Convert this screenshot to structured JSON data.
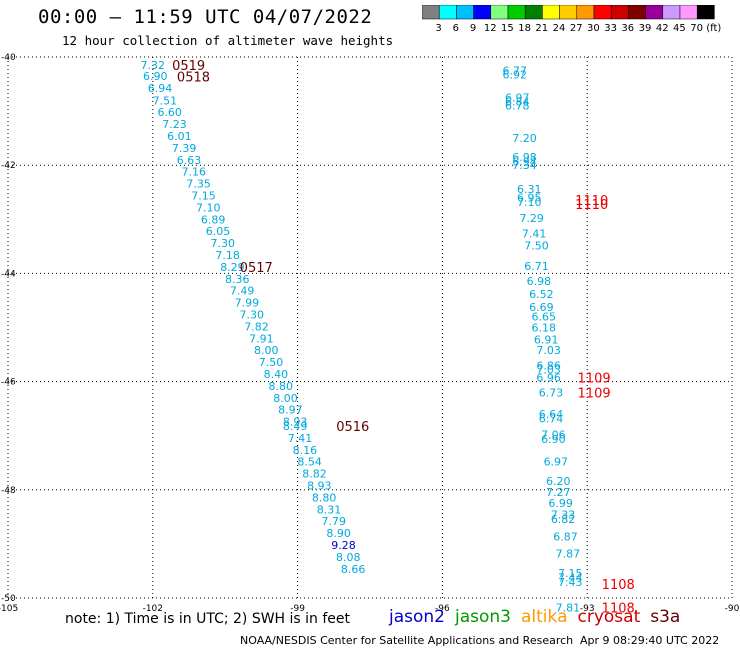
{
  "header": {
    "title": "00:00 – 11:59 UTC 04/07/2022",
    "subtitle": "12 hour collection of altimeter wave heights"
  },
  "colorbar": {
    "colors": [
      "#808080",
      "#00ffff",
      "#00bfff",
      "#0000ff",
      "#80ff80",
      "#00cc00",
      "#008000",
      "#ffff00",
      "#ffcc00",
      "#ff9900",
      "#ff0000",
      "#cc0000",
      "#800000",
      "#990099",
      "#cc99ff",
      "#ff99ff",
      "#000000"
    ],
    "labels": [
      "3",
      "6",
      "9",
      "12",
      "15",
      "18",
      "21",
      "24",
      "27",
      "30",
      "33",
      "36",
      "39",
      "42",
      "45",
      "70",
      "(ft)"
    ]
  },
  "note": "note:  1) Time is in UTC; 2) SWH is in feet",
  "legend": [
    {
      "name": "jason2",
      "color": "#0000cc"
    },
    {
      "name": "jason3",
      "color": "#009900"
    },
    {
      "name": "altika",
      "color": "#ff9900"
    },
    {
      "name": "cryosat",
      "color": "#cc0000"
    },
    {
      "name": "s3a",
      "color": "#660000"
    }
  ],
  "footer": {
    "credit": "NOAA/NESDIS Center for Satellite Applications and Research",
    "timestamp": "Apr  9 08:29:40 UTC 2022"
  },
  "chart_data": {
    "type": "scatter",
    "xlim": [
      -105,
      -90
    ],
    "ylim": [
      -50,
      -40
    ],
    "xticks": [
      -105,
      -102,
      -99,
      -96,
      -93,
      -90
    ],
    "xtick_labels": [
      "-105",
      "-102",
      "-99",
      "-96",
      "-93",
      "-90"
    ],
    "yticks": [
      -40,
      -42,
      -44,
      -46,
      -48,
      -50
    ],
    "ytick_labels": [
      "-40",
      "-42",
      "-44",
      "-46",
      "-48",
      "-50"
    ],
    "grid": true,
    "points": [
      {
        "x": -102.0,
        "y": -40.15,
        "t": "7.32",
        "c": "#00aadd"
      },
      {
        "x": -101.95,
        "y": -40.35,
        "t": "6.90",
        "c": "#00aadd"
      },
      {
        "x": -101.85,
        "y": -40.57,
        "t": "6.94",
        "c": "#00aadd"
      },
      {
        "x": -101.75,
        "y": -40.8,
        "t": "7.51",
        "c": "#00aadd"
      },
      {
        "x": -101.65,
        "y": -41.02,
        "t": "6.60",
        "c": "#00aadd"
      },
      {
        "x": -101.55,
        "y": -41.24,
        "t": "7.23",
        "c": "#00aadd"
      },
      {
        "x": -101.45,
        "y": -41.46,
        "t": "6.01",
        "c": "#00aadd"
      },
      {
        "x": -101.35,
        "y": -41.68,
        "t": "7.39",
        "c": "#00aadd"
      },
      {
        "x": -101.25,
        "y": -41.9,
        "t": "6.63",
        "c": "#00aadd"
      },
      {
        "x": -101.15,
        "y": -42.12,
        "t": "7.16",
        "c": "#00aadd"
      },
      {
        "x": -101.05,
        "y": -42.34,
        "t": "7.35",
        "c": "#00aadd"
      },
      {
        "x": -100.95,
        "y": -42.56,
        "t": "7.15",
        "c": "#00aadd"
      },
      {
        "x": -100.85,
        "y": -42.78,
        "t": "7.10",
        "c": "#00aadd"
      },
      {
        "x": -100.75,
        "y": -43.0,
        "t": "6.89",
        "c": "#00aadd"
      },
      {
        "x": -100.65,
        "y": -43.22,
        "t": "6.05",
        "c": "#00aadd"
      },
      {
        "x": -100.55,
        "y": -43.44,
        "t": "7.30",
        "c": "#00aadd"
      },
      {
        "x": -100.45,
        "y": -43.66,
        "t": "7.18",
        "c": "#00aadd"
      },
      {
        "x": -100.35,
        "y": -43.88,
        "t": "8.29",
        "c": "#00aadd"
      },
      {
        "x": -100.25,
        "y": -44.1,
        "t": "8.36",
        "c": "#00aadd"
      },
      {
        "x": -100.15,
        "y": -44.32,
        "t": "7.49",
        "c": "#00aadd"
      },
      {
        "x": -100.05,
        "y": -44.54,
        "t": "7.99",
        "c": "#00aadd"
      },
      {
        "x": -99.95,
        "y": -44.76,
        "t": "7.30",
        "c": "#00aadd"
      },
      {
        "x": -99.85,
        "y": -44.98,
        "t": "7.82",
        "c": "#00aadd"
      },
      {
        "x": -99.75,
        "y": -45.2,
        "t": "7.91",
        "c": "#00aadd"
      },
      {
        "x": -99.65,
        "y": -45.42,
        "t": "8.00",
        "c": "#00aadd"
      },
      {
        "x": -99.55,
        "y": -45.64,
        "t": "7.50",
        "c": "#00aadd"
      },
      {
        "x": -99.45,
        "y": -45.86,
        "t": "8.40",
        "c": "#00aadd"
      },
      {
        "x": -99.35,
        "y": -46.08,
        "t": "8.80",
        "c": "#00aadd"
      },
      {
        "x": -99.25,
        "y": -46.3,
        "t": "8.00",
        "c": "#00aadd"
      },
      {
        "x": -99.15,
        "y": -46.52,
        "t": "8.97",
        "c": "#00aadd"
      },
      {
        "x": -99.05,
        "y": -46.74,
        "t": "8.93",
        "c": "#00aadd"
      },
      {
        "x": -99.05,
        "y": -46.82,
        "t": "8.49",
        "c": "#00aadd"
      },
      {
        "x": -98.95,
        "y": -47.04,
        "t": "7.41",
        "c": "#00aadd"
      },
      {
        "x": -98.85,
        "y": -47.26,
        "t": "8.16",
        "c": "#00aadd"
      },
      {
        "x": -98.75,
        "y": -47.48,
        "t": "8.54",
        "c": "#00aadd"
      },
      {
        "x": -98.65,
        "y": -47.7,
        "t": "8.82",
        "c": "#00aadd"
      },
      {
        "x": -98.55,
        "y": -47.92,
        "t": "8.93",
        "c": "#00aadd"
      },
      {
        "x": -98.45,
        "y": -48.14,
        "t": "8.80",
        "c": "#00aadd"
      },
      {
        "x": -98.35,
        "y": -48.36,
        "t": "8.31",
        "c": "#00aadd"
      },
      {
        "x": -98.25,
        "y": -48.58,
        "t": "7.79",
        "c": "#00aadd"
      },
      {
        "x": -98.15,
        "y": -48.8,
        "t": "8.90",
        "c": "#00aadd"
      },
      {
        "x": -98.05,
        "y": -49.02,
        "t": "9.28",
        "c": "#0000cc"
      },
      {
        "x": -97.95,
        "y": -49.24,
        "t": "8.08",
        "c": "#00aadd"
      },
      {
        "x": -97.85,
        "y": -49.46,
        "t": "8.66",
        "c": "#00aadd"
      },
      {
        "x": -94.5,
        "y": -40.25,
        "t": "6.77",
        "c": "#00aadd"
      },
      {
        "x": -94.5,
        "y": -40.32,
        "t": "6.92",
        "c": "#00aadd"
      },
      {
        "x": -94.45,
        "y": -40.75,
        "t": "6.97",
        "c": "#00aadd"
      },
      {
        "x": -94.45,
        "y": -40.82,
        "t": "6.84",
        "c": "#00aadd"
      },
      {
        "x": -94.45,
        "y": -40.9,
        "t": "6.78",
        "c": "#00aadd"
      },
      {
        "x": -94.3,
        "y": -41.5,
        "t": "7.20",
        "c": "#00aadd"
      },
      {
        "x": -94.3,
        "y": -41.85,
        "t": "6.98",
        "c": "#00aadd"
      },
      {
        "x": -94.3,
        "y": -41.93,
        "t": "6.94",
        "c": "#00aadd"
      },
      {
        "x": -94.3,
        "y": -42.0,
        "t": "7.34",
        "c": "#00aadd"
      },
      {
        "x": -94.2,
        "y": -42.44,
        "t": "6.31",
        "c": "#00aadd"
      },
      {
        "x": -94.2,
        "y": -42.6,
        "t": "6.95",
        "c": "#00aadd"
      },
      {
        "x": -94.2,
        "y": -42.68,
        "t": "7.10",
        "c": "#00aadd"
      },
      {
        "x": -94.15,
        "y": -42.98,
        "t": "7.29",
        "c": "#00aadd"
      },
      {
        "x": -94.1,
        "y": -43.26,
        "t": "7.41",
        "c": "#00aadd"
      },
      {
        "x": -94.05,
        "y": -43.48,
        "t": "7.50",
        "c": "#00aadd"
      },
      {
        "x": -94.05,
        "y": -43.86,
        "t": "6.71",
        "c": "#00aadd"
      },
      {
        "x": -94.0,
        "y": -44.14,
        "t": "6.98",
        "c": "#00aadd"
      },
      {
        "x": -93.95,
        "y": -44.38,
        "t": "6.52",
        "c": "#00aadd"
      },
      {
        "x": -93.95,
        "y": -44.62,
        "t": "6.69",
        "c": "#00aadd"
      },
      {
        "x": -93.9,
        "y": -44.8,
        "t": "6.65",
        "c": "#00aadd"
      },
      {
        "x": -93.9,
        "y": -45.0,
        "t": "6.18",
        "c": "#00aadd"
      },
      {
        "x": -93.85,
        "y": -45.22,
        "t": "6.91",
        "c": "#00aadd"
      },
      {
        "x": -93.8,
        "y": -45.42,
        "t": "7.03",
        "c": "#00aadd"
      },
      {
        "x": -93.8,
        "y": -45.7,
        "t": "6.86",
        "c": "#00aadd"
      },
      {
        "x": -93.8,
        "y": -45.78,
        "t": "7.03",
        "c": "#00aadd"
      },
      {
        "x": -93.8,
        "y": -45.92,
        "t": "6.96",
        "c": "#00aadd"
      },
      {
        "x": -93.75,
        "y": -46.2,
        "t": "6.73",
        "c": "#00aadd"
      },
      {
        "x": -93.75,
        "y": -46.6,
        "t": "6.64",
        "c": "#00aadd"
      },
      {
        "x": -93.75,
        "y": -46.68,
        "t": "6.74",
        "c": "#00aadd"
      },
      {
        "x": -93.7,
        "y": -46.98,
        "t": "7.06",
        "c": "#00aadd"
      },
      {
        "x": -93.7,
        "y": -47.06,
        "t": "6.90",
        "c": "#00aadd"
      },
      {
        "x": -93.65,
        "y": -47.48,
        "t": "6.97",
        "c": "#00aadd"
      },
      {
        "x": -93.6,
        "y": -47.84,
        "t": "6.20",
        "c": "#00aadd"
      },
      {
        "x": -93.6,
        "y": -48.04,
        "t": "7.27",
        "c": "#00aadd"
      },
      {
        "x": -93.55,
        "y": -48.24,
        "t": "6.99",
        "c": "#00aadd"
      },
      {
        "x": -93.5,
        "y": -48.46,
        "t": "7.33",
        "c": "#00aadd"
      },
      {
        "x": -93.5,
        "y": -48.54,
        "t": "6.82",
        "c": "#00aadd"
      },
      {
        "x": -93.45,
        "y": -48.86,
        "t": "6.87",
        "c": "#00aadd"
      },
      {
        "x": -93.4,
        "y": -49.18,
        "t": "7.87",
        "c": "#00aadd"
      },
      {
        "x": -93.35,
        "y": -49.54,
        "t": "7.15",
        "c": "#00aadd"
      },
      {
        "x": -93.35,
        "y": -49.62,
        "t": "7.44",
        "c": "#00aadd"
      },
      {
        "x": -93.35,
        "y": -49.7,
        "t": "7.43",
        "c": "#00aadd"
      },
      {
        "x": -93.4,
        "y": -50.18,
        "t": "7.81",
        "c": "#00aadd"
      }
    ],
    "annotations": [
      {
        "x": -101.6,
        "y": -40.15,
        "t": "0519",
        "c": "#660000"
      },
      {
        "x": -101.5,
        "y": -40.36,
        "t": "0518",
        "c": "#660000"
      },
      {
        "x": -100.2,
        "y": -43.88,
        "t": "0517",
        "c": "#660000"
      },
      {
        "x": -98.2,
        "y": -46.82,
        "t": "0516",
        "c": "#660000"
      },
      {
        "x": -93.25,
        "y": -42.64,
        "t": "1110",
        "c": "#ee0000"
      },
      {
        "x": -93.25,
        "y": -42.72,
        "t": "1110",
        "c": "#ee0000"
      },
      {
        "x": -93.2,
        "y": -45.92,
        "t": "1109",
        "c": "#ee0000"
      },
      {
        "x": -93.2,
        "y": -46.2,
        "t": "1109",
        "c": "#ee0000"
      },
      {
        "x": -92.7,
        "y": -49.74,
        "t": "1108",
        "c": "#ee0000"
      },
      {
        "x": -92.7,
        "y": -50.18,
        "t": "1108",
        "c": "#ee0000"
      }
    ]
  }
}
